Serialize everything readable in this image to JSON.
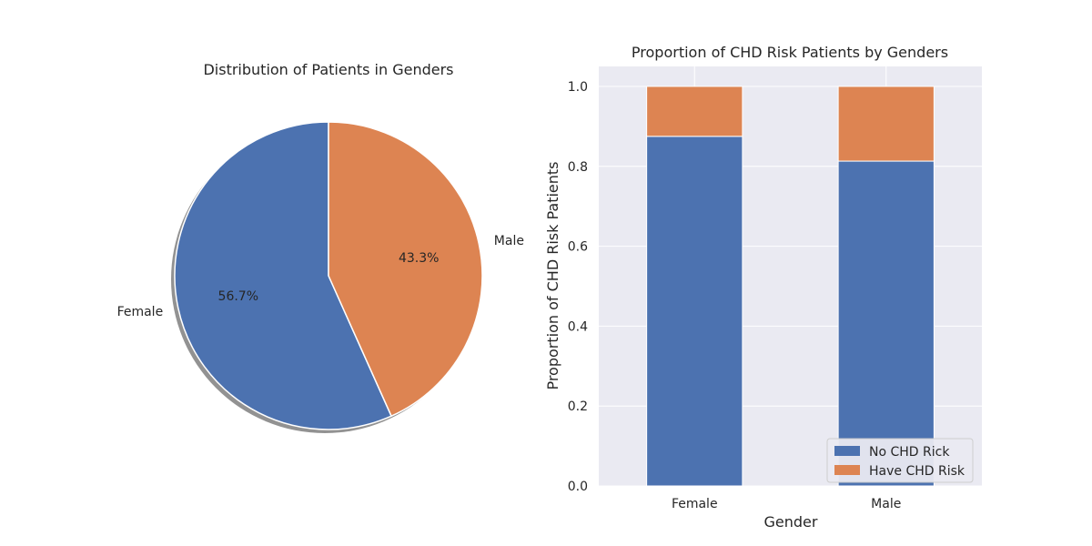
{
  "colors": {
    "blue": "#4c72b0",
    "orange": "#dd8452",
    "plot_bg": "#eaeaf2",
    "grid": "#ffffff",
    "shadow": "#7f7f7f"
  },
  "chart_data": [
    {
      "type": "pie",
      "title": "Distribution of Patients in Genders",
      "labels": [
        "Female",
        "Male"
      ],
      "values": [
        56.7,
        43.3
      ],
      "pct_labels": [
        "56.7%",
        "43.3%"
      ],
      "start_angle_deg": 90,
      "shadow": true
    },
    {
      "type": "bar",
      "stacked": true,
      "title": "Proportion of CHD Risk Patients by Genders",
      "xlabel": "Gender",
      "ylabel": "Proportion of CHD Risk Patients",
      "categories": [
        "Female",
        "Male"
      ],
      "series": [
        {
          "name": "No CHD Rick",
          "values": [
            0.875,
            0.813
          ]
        },
        {
          "name": "Have CHD Risk",
          "values": [
            0.125,
            0.187
          ]
        }
      ],
      "ylim": [
        0,
        1.05
      ],
      "yticks": [
        "0.0",
        "0.2",
        "0.4",
        "0.6",
        "0.8",
        "1.0"
      ],
      "grid": true,
      "legend_position": "lower-right"
    }
  ]
}
